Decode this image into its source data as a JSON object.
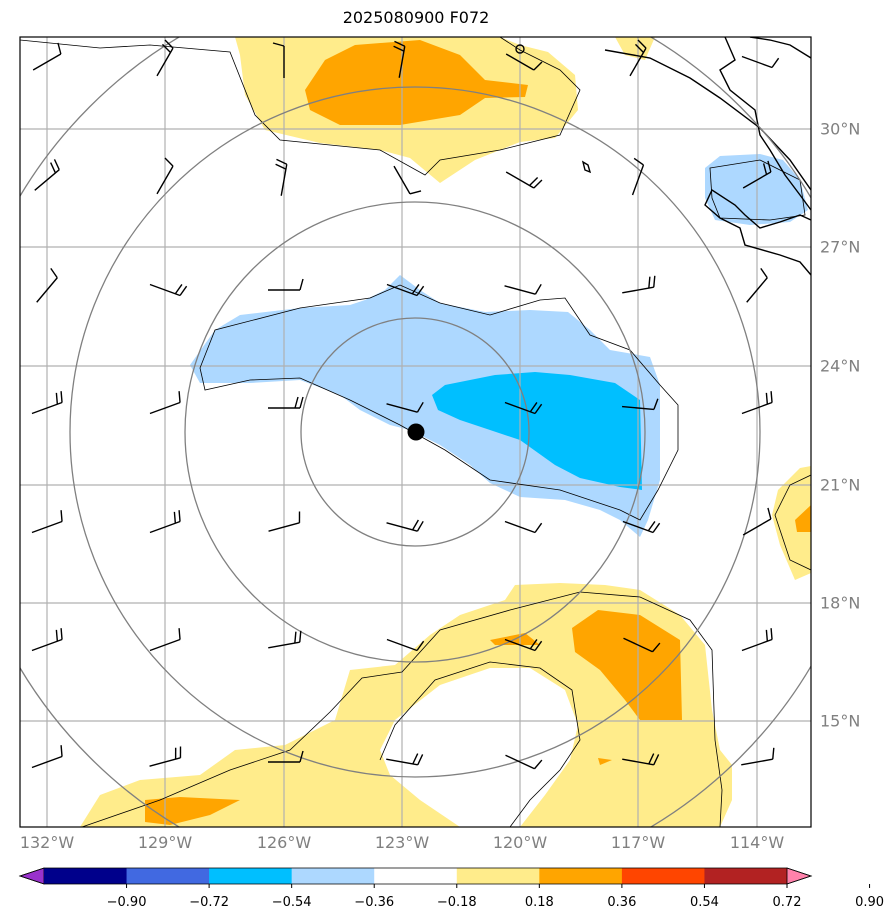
{
  "title": "2025080900 F072",
  "lon_ticks": [
    "132°W",
    "129°W",
    "126°W",
    "123°W",
    "120°W",
    "117°W",
    "114°W"
  ],
  "lat_ticks": [
    "30°N",
    "27°N",
    "24°N",
    "21°N",
    "18°N",
    "15°N"
  ],
  "colorbar": {
    "tick_labels": [
      "−0.90",
      "−0.72",
      "−0.54",
      "−0.36",
      "−0.18",
      "0.18",
      "0.36",
      "0.54",
      "0.72",
      "0.90"
    ],
    "colors": [
      "#9932cc",
      "#00008b",
      "#4169e1",
      "#00bfff",
      "#add8ff",
      "#ffffff",
      "#ffec8b",
      "#ffa500",
      "#ff4500",
      "#b22222",
      "#ff82ab"
    ]
  },
  "map": {
    "lon_range": [
      -132.7,
      -112.7
    ],
    "lat_range": [
      12.5,
      32.2
    ],
    "storm_center": {
      "lon": -122.7,
      "lat": 22.3
    },
    "range_ring_color": "#808080",
    "coastline_color": "#000000",
    "gridline_color": "#b0b0b0"
  }
}
